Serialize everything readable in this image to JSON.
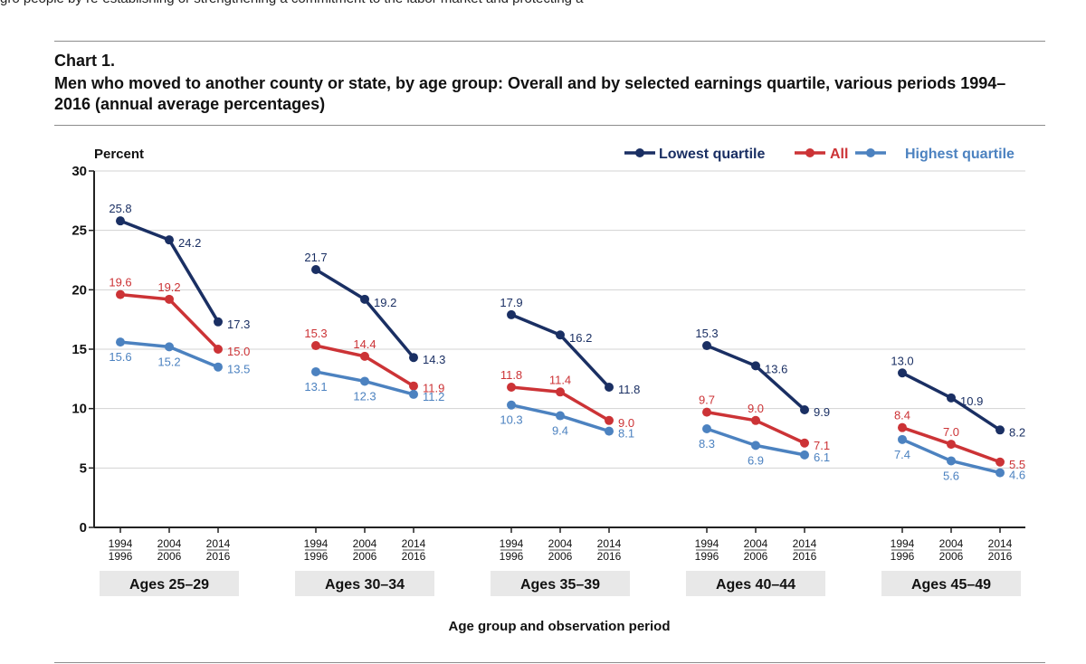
{
  "page": {
    "top_fragment": "gro people by re-establishing or strengthening a commitment to the labor market and protecting a",
    "chart_number": "Chart 1.",
    "chart_title": "Men who moved to another county or state, by age group: Overall and by selected earnings quartile, various periods 1994–2016 (annual average percentages)"
  },
  "chart_data": {
    "type": "line",
    "title": "Men who moved to another county or state, by age group: Overall and by selected earnings quartile, various periods 1994–2016 (annual average percentages)",
    "ylabel": "Percent",
    "xlabel": "Age group and observation period",
    "ylim": [
      0,
      30
    ],
    "yticks": [
      "0",
      "5",
      "10",
      "15",
      "20",
      "25",
      "30"
    ],
    "grid": true,
    "legend_position": "top-right",
    "period_labels": [
      [
        "1994",
        "1996"
      ],
      [
        "2004",
        "2006"
      ],
      [
        "2014",
        "2016"
      ]
    ],
    "groups": [
      "Ages 25–29",
      "Ages 30–34",
      "Ages 35–39",
      "Ages 40–44",
      "Ages 45–49"
    ],
    "series": [
      {
        "name": "Lowest quartile",
        "color": "#1a2f63",
        "values": [
          [
            25.8,
            24.2,
            17.3
          ],
          [
            21.7,
            19.2,
            14.3
          ],
          [
            17.9,
            16.2,
            11.8
          ],
          [
            15.3,
            13.6,
            9.9
          ],
          [
            13.0,
            10.9,
            8.2
          ]
        ],
        "labels": [
          [
            "25.8",
            "24.2",
            "17.3"
          ],
          [
            "21.7",
            "19.2",
            "14.3"
          ],
          [
            "17.9",
            "16.2",
            "11.8"
          ],
          [
            "15.3",
            "13.6",
            "9.9"
          ],
          [
            "13.0",
            "10.9",
            "8.2"
          ]
        ]
      },
      {
        "name": "All",
        "color": "#cc3336",
        "values": [
          [
            19.6,
            19.2,
            15.0
          ],
          [
            15.3,
            14.4,
            11.9
          ],
          [
            11.8,
            11.4,
            9.0
          ],
          [
            9.7,
            9.0,
            7.1
          ],
          [
            8.4,
            7.0,
            5.5
          ]
        ],
        "labels": [
          [
            "19.6",
            "19.2",
            "15.0"
          ],
          [
            "15.3",
            "14.4",
            "11.9"
          ],
          [
            "11.8",
            "11.4",
            "9.0"
          ],
          [
            "9.7",
            "9.0",
            "7.1"
          ],
          [
            "8.4",
            "7.0",
            "5.5"
          ]
        ]
      },
      {
        "name": "Highest quartile",
        "color": "#4c82c0",
        "values": [
          [
            15.6,
            15.2,
            13.5
          ],
          [
            13.1,
            12.3,
            11.2
          ],
          [
            10.3,
            9.4,
            8.1
          ],
          [
            8.3,
            6.9,
            6.1
          ],
          [
            7.4,
            5.6,
            4.6
          ]
        ],
        "labels": [
          [
            "15.6",
            "15.2",
            "13.5"
          ],
          [
            "13.1",
            "12.3",
            "11.2"
          ],
          [
            "10.3",
            "9.4",
            "8.1"
          ],
          [
            "8.3",
            "6.9",
            "6.1"
          ],
          [
            "7.4",
            "5.6",
            "4.6"
          ]
        ]
      }
    ]
  }
}
